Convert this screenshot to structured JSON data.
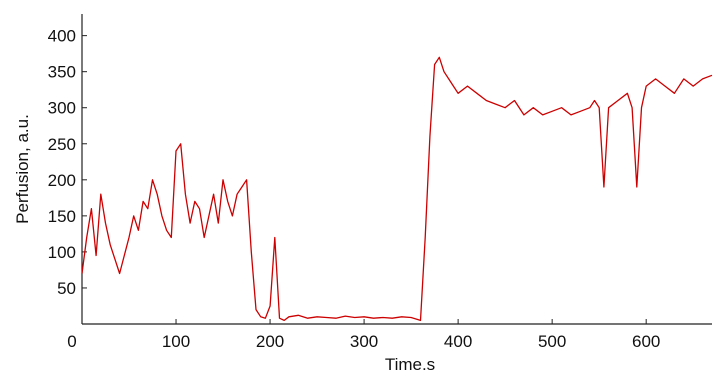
{
  "chart_data": {
    "type": "line",
    "title": "",
    "xlabel": "Time.s",
    "ylabel": "Perfusion, a.u.",
    "xlim": [
      0,
      670
    ],
    "ylim": [
      0,
      430
    ],
    "xticks": [
      0,
      100,
      200,
      300,
      400,
      500,
      600
    ],
    "yticks": [
      50,
      100,
      150,
      200,
      250,
      300,
      350,
      400
    ],
    "grid": false,
    "legend": "none",
    "series": [
      {
        "color": "#cc0000",
        "x": [
          0,
          5,
          10,
          15,
          20,
          25,
          30,
          35,
          40,
          45,
          50,
          55,
          60,
          65,
          70,
          75,
          80,
          85,
          90,
          95,
          100,
          105,
          110,
          115,
          120,
          125,
          130,
          135,
          140,
          145,
          150,
          155,
          160,
          165,
          170,
          175,
          180,
          185,
          190,
          195,
          200,
          205,
          210,
          215,
          220,
          230,
          240,
          250,
          260,
          270,
          280,
          290,
          300,
          310,
          320,
          330,
          340,
          350,
          360,
          365,
          370,
          375,
          380,
          385,
          390,
          395,
          400,
          410,
          420,
          430,
          440,
          450,
          460,
          470,
          480,
          490,
          500,
          510,
          520,
          530,
          540,
          545,
          550,
          555,
          560,
          570,
          580,
          585,
          590,
          595,
          600,
          610,
          620,
          630,
          640,
          650,
          660,
          670
        ],
        "values": [
          70,
          120,
          160,
          95,
          180,
          140,
          110,
          90,
          70,
          95,
          120,
          150,
          130,
          170,
          160,
          200,
          180,
          150,
          130,
          120,
          240,
          250,
          180,
          140,
          170,
          160,
          120,
          150,
          180,
          140,
          200,
          170,
          150,
          180,
          190,
          200,
          100,
          20,
          10,
          8,
          25,
          120,
          8,
          5,
          10,
          12,
          8,
          10,
          9,
          8,
          11,
          9,
          10,
          8,
          9,
          8,
          10,
          9,
          5,
          120,
          260,
          360,
          370,
          350,
          340,
          330,
          320,
          330,
          320,
          310,
          305,
          300,
          310,
          290,
          300,
          290,
          295,
          300,
          290,
          295,
          300,
          310,
          300,
          190,
          300,
          310,
          320,
          300,
          190,
          300,
          330,
          340,
          330,
          320,
          340,
          330,
          340,
          345
        ]
      }
    ]
  }
}
